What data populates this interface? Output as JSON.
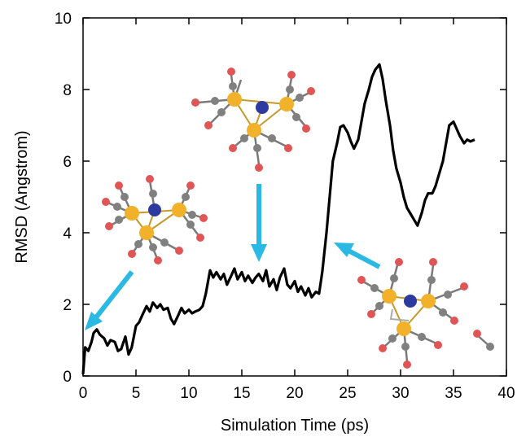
{
  "chart_data": {
    "type": "line",
    "title": "",
    "xlabel": "Simulation Time (ps)",
    "ylabel": "RMSD (Angstrom)",
    "xlim": [
      0,
      40
    ],
    "ylim": [
      0,
      10
    ],
    "xticks": [
      0,
      5,
      10,
      15,
      20,
      25,
      30,
      35,
      40
    ],
    "yticks": [
      0,
      2,
      4,
      6,
      8,
      10
    ],
    "grid": false,
    "legend": "none",
    "series": [
      {
        "color": "#000000",
        "x": [
          0,
          0.2,
          0.5,
          0.8,
          1.0,
          1.3,
          1.6,
          2.0,
          2.3,
          2.6,
          3.0,
          3.3,
          3.6,
          4.0,
          4.3,
          4.6,
          5.0,
          5.3,
          5.6,
          6.0,
          6.3,
          6.6,
          7.0,
          7.3,
          7.6,
          8.0,
          8.3,
          8.6,
          9.0,
          9.3,
          9.6,
          10.0,
          10.3,
          10.6,
          11.0,
          11.3,
          11.6,
          12.0,
          12.3,
          12.6,
          13.0,
          13.3,
          13.6,
          14.0,
          14.3,
          14.6,
          15.0,
          15.3,
          15.6,
          16.0,
          16.3,
          16.6,
          17.0,
          17.3,
          17.6,
          18.0,
          18.3,
          18.6,
          19.0,
          19.3,
          19.6,
          20.0,
          20.3,
          20.6,
          21.0,
          21.3,
          21.6,
          22.0,
          22.3,
          22.6,
          23.0,
          23.3,
          23.6,
          24.0,
          24.3,
          24.6,
          25.0,
          25.3,
          25.6,
          26.0,
          26.3,
          26.6,
          27.0,
          27.3,
          27.6,
          28.0,
          28.3,
          28.6,
          29.0,
          29.3,
          29.6,
          30.0,
          30.3,
          30.6,
          31.0,
          31.3,
          31.6,
          32.0,
          32.3,
          32.6,
          33.0,
          33.3,
          33.6,
          34.0,
          34.3,
          34.6,
          35.0,
          35.3,
          35.6,
          36.0,
          36.3,
          36.6,
          37.0
        ],
        "y": [
          0.05,
          0.8,
          0.7,
          0.95,
          1.2,
          1.3,
          1.15,
          1.05,
          0.85,
          1.0,
          0.95,
          0.7,
          0.75,
          1.1,
          0.6,
          0.8,
          1.4,
          1.5,
          1.7,
          1.95,
          1.8,
          2.05,
          1.9,
          2.0,
          1.85,
          1.9,
          1.6,
          1.45,
          1.7,
          1.9,
          1.75,
          1.85,
          1.75,
          1.8,
          1.85,
          1.95,
          2.3,
          2.95,
          2.75,
          2.9,
          2.7,
          2.85,
          2.55,
          2.8,
          3.0,
          2.7,
          2.9,
          2.65,
          2.8,
          2.6,
          2.75,
          2.85,
          2.65,
          2.95,
          2.5,
          2.7,
          2.4,
          2.75,
          3.0,
          2.55,
          2.45,
          2.65,
          2.35,
          2.5,
          2.25,
          2.45,
          2.2,
          2.35,
          2.3,
          2.9,
          4.0,
          5.0,
          6.0,
          6.5,
          6.95,
          7.0,
          6.8,
          6.55,
          6.35,
          6.6,
          7.1,
          7.6,
          8.0,
          8.35,
          8.55,
          8.7,
          8.3,
          7.7,
          7.0,
          6.3,
          5.8,
          5.4,
          5.0,
          4.7,
          4.5,
          4.35,
          4.2,
          4.55,
          4.9,
          5.1,
          5.1,
          5.3,
          5.6,
          6.0,
          6.5,
          7.0,
          7.1,
          6.9,
          6.7,
          6.5,
          6.6,
          6.55,
          6.6
        ]
      }
    ]
  }
}
